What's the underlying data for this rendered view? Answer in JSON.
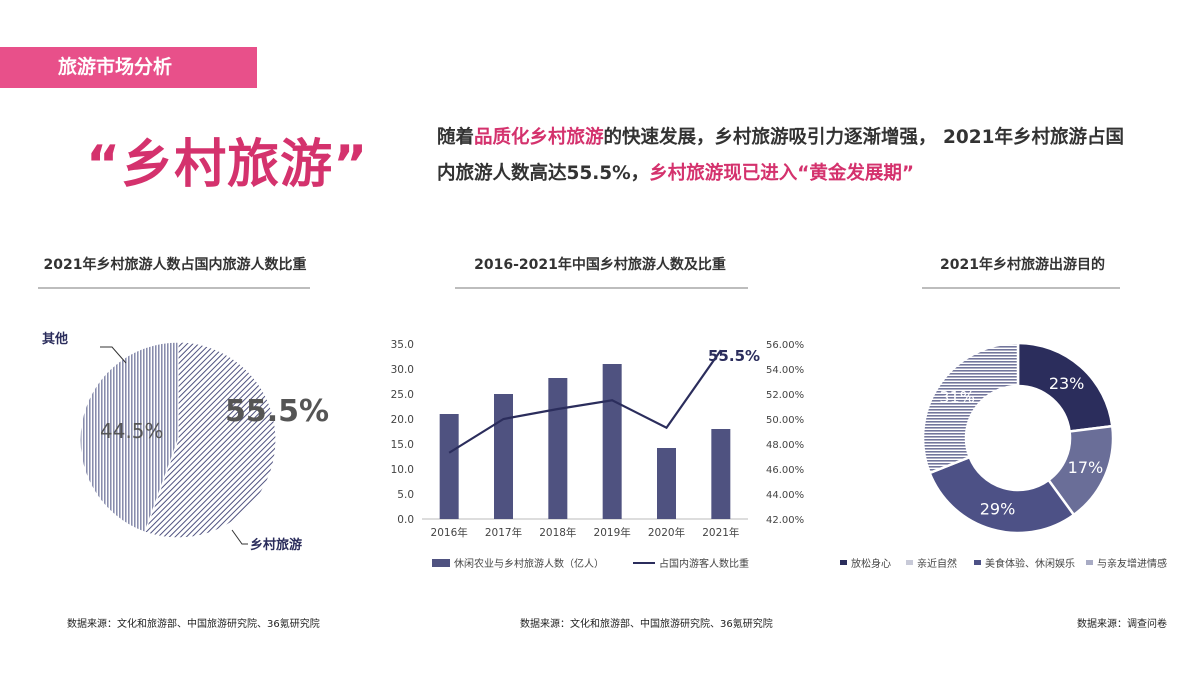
{
  "header": {
    "tag": "旅游市场分析"
  },
  "headline": "“乡村旅游”",
  "intro": {
    "part1": "随着",
    "hl1": "品质化乡村旅游",
    "part2": "的快速发展，乡村旅游吸引力逐渐增强， 2021年乡村旅游占国内旅游人数高达55.5%，",
    "hl2": "乡村旅游现已进入“黄金发展期”"
  },
  "colors": {
    "accent": "#e8508a",
    "headline": "#d4326d",
    "navy": "#2b2d5c",
    "bar": "#4f5280",
    "slate": "#636a94"
  },
  "charts": {
    "pie": {
      "title": "2021年乡村旅游人数占国内旅游人数比重",
      "source": "数据来源：文化和旅游部、中国旅游研究院、36氪研究院",
      "label_other": "其他",
      "label_rural": "乡村旅游",
      "pct_rural_text": "55.5%",
      "pct_other_text": "44.5%"
    },
    "combo": {
      "title": "2016-2021年中国乡村旅游人数及比重",
      "source": "数据来源：文化和旅游部、中国旅游研究院、36氪研究院",
      "legend_bar": "休闲农业与乡村旅游人数（亿人）",
      "legend_line": "占国内游客人数比重",
      "end_label": "55.5%"
    },
    "donut": {
      "title": "2021年乡村旅游出游目的",
      "source": "数据来源：调查问卷"
    }
  },
  "chart_data": [
    {
      "type": "pie",
      "title": "2021年乡村旅游人数占国内旅游人数比重",
      "categories": [
        "乡村旅游",
        "其他"
      ],
      "values": [
        55.5,
        44.5
      ]
    },
    {
      "type": "bar",
      "title": "2016-2021年中国乡村旅游人数及比重",
      "categories": [
        "2016年",
        "2017年",
        "2018年",
        "2019年",
        "2020年",
        "2021年"
      ],
      "series": [
        {
          "name": "休闲农业与乡村旅游人数（亿人）",
          "type": "bar",
          "axis": "left",
          "values": [
            21,
            25,
            28.2,
            31,
            14.2,
            18
          ]
        },
        {
          "name": "占国内游客人数比重",
          "type": "line",
          "axis": "right",
          "values": [
            47.3,
            50.0,
            50.8,
            51.5,
            49.3,
            55.5
          ]
        }
      ],
      "ylim": [
        0,
        35
      ],
      "yticks": [
        "0.0",
        "5.0",
        "10.0",
        "15.0",
        "20.0",
        "25.0",
        "30.0",
        "35.0"
      ],
      "y2lim": [
        42,
        56
      ],
      "y2ticks": [
        "42.00%",
        "44.00%",
        "46.00%",
        "48.00%",
        "50.00%",
        "52.00%",
        "54.00%",
        "56.00%"
      ],
      "legend": "bottom"
    },
    {
      "type": "pie",
      "subtype": "donut",
      "title": "2021年乡村旅游出游目的",
      "categories": [
        "放松身心",
        "亲近自然",
        "美食体验、休闲娱乐",
        "与亲友增进情感"
      ],
      "values": [
        23,
        17,
        29,
        31
      ],
      "labels": [
        "23%",
        "17%",
        "29%",
        "31%"
      ],
      "legend": "bottom"
    }
  ]
}
